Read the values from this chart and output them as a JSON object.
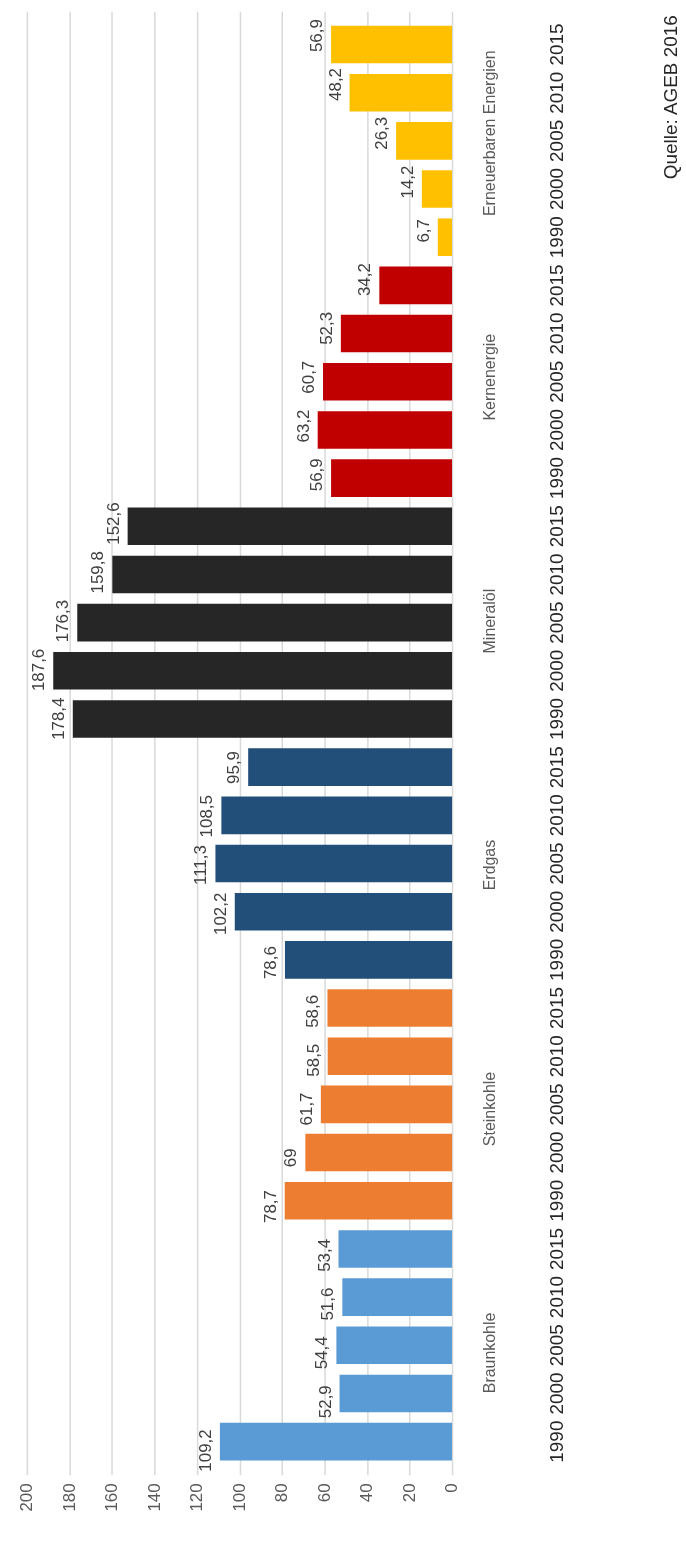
{
  "chart_data": {
    "type": "bar",
    "orientation": "horizontal",
    "categories": [
      "2015",
      "2010",
      "2005",
      "2000",
      "1990",
      "2015",
      "2010",
      "2005",
      "2000",
      "1990",
      "2015",
      "2010",
      "2005",
      "2000",
      "1990",
      "2015",
      "2010",
      "2005",
      "2000",
      "1990",
      "2015",
      "2010",
      "2005",
      "2000",
      "1990",
      "2015",
      "2010",
      "2005",
      "2000",
      "1990"
    ],
    "series": [
      {
        "name": "Erneuerbaren Energien",
        "color": "#ffc000",
        "values": [
          56.9,
          48.2,
          26.3,
          14.2,
          6.7,
          null,
          null,
          null,
          null,
          null,
          null,
          null,
          null,
          null,
          null,
          null,
          null,
          null,
          null,
          null,
          null,
          null,
          null,
          null,
          null,
          null,
          null,
          null,
          null,
          null
        ],
        "value_labels": [
          "56,9",
          "48,2",
          "26,3",
          "14,2",
          "6,7",
          null,
          null,
          null,
          null,
          null,
          null,
          null,
          null,
          null,
          null,
          null,
          null,
          null,
          null,
          null,
          null,
          null,
          null,
          null,
          null,
          null,
          null,
          null,
          null,
          null
        ]
      },
      {
        "name": "Kernenergie",
        "color": "#c00000",
        "values": [
          null,
          null,
          null,
          null,
          null,
          34.2,
          52.3,
          60.7,
          63.2,
          56.9,
          null,
          null,
          null,
          null,
          null,
          null,
          null,
          null,
          null,
          null,
          null,
          null,
          null,
          null,
          null,
          null,
          null,
          null,
          null,
          null
        ],
        "value_labels": [
          null,
          null,
          null,
          null,
          null,
          "34,2",
          "52,3",
          "60,7",
          "63,2",
          "56,9",
          null,
          null,
          null,
          null,
          null,
          null,
          null,
          null,
          null,
          null,
          null,
          null,
          null,
          null,
          null,
          null,
          null,
          null,
          null,
          null
        ]
      },
      {
        "name": "Mineralöl",
        "color": "#262626",
        "values": [
          null,
          null,
          null,
          null,
          null,
          null,
          null,
          null,
          null,
          null,
          152.6,
          159.8,
          176.3,
          187.6,
          178.4,
          null,
          null,
          null,
          null,
          null,
          null,
          null,
          null,
          null,
          null,
          null,
          null,
          null,
          null,
          null
        ],
        "value_labels": [
          null,
          null,
          null,
          null,
          null,
          null,
          null,
          null,
          null,
          null,
          "152,6",
          "159,8",
          "176,3",
          "187,6",
          "178,4",
          null,
          null,
          null,
          null,
          null,
          null,
          null,
          null,
          null,
          null,
          null,
          null,
          null,
          null,
          null
        ]
      },
      {
        "name": "Erdgas",
        "color": "#224e7a",
        "values": [
          null,
          null,
          null,
          null,
          null,
          null,
          null,
          null,
          null,
          null,
          null,
          null,
          null,
          null,
          null,
          95.9,
          108.5,
          111.3,
          102.2,
          78.6,
          null,
          null,
          null,
          null,
          null,
          null,
          null,
          null,
          null,
          null
        ],
        "value_labels": [
          null,
          null,
          null,
          null,
          null,
          null,
          null,
          null,
          null,
          null,
          null,
          null,
          null,
          null,
          null,
          "95,9",
          "108,5",
          "111,3",
          "102,2",
          "78,6",
          null,
          null,
          null,
          null,
          null,
          null,
          null,
          null,
          null,
          null
        ]
      },
      {
        "name": "Steinkohle",
        "color": "#ed7d31",
        "values": [
          null,
          null,
          null,
          null,
          null,
          null,
          null,
          null,
          null,
          null,
          null,
          null,
          null,
          null,
          null,
          null,
          null,
          null,
          null,
          null,
          58.6,
          58.5,
          61.7,
          69,
          78.7,
          null,
          null,
          null,
          null,
          null
        ],
        "value_labels": [
          null,
          null,
          null,
          null,
          null,
          null,
          null,
          null,
          null,
          null,
          null,
          null,
          null,
          null,
          null,
          null,
          null,
          null,
          null,
          null,
          "58,6",
          "58,5",
          "61,7",
          "69",
          "78,7",
          null,
          null,
          null,
          null,
          null
        ]
      },
      {
        "name": "Braunkohle",
        "color": "#5b9bd5",
        "values": [
          null,
          null,
          null,
          null,
          null,
          null,
          null,
          null,
          null,
          null,
          null,
          null,
          null,
          null,
          null,
          null,
          null,
          null,
          null,
          null,
          null,
          null,
          null,
          null,
          null,
          53.4,
          51.6,
          54.4,
          52.9,
          109.2
        ],
        "value_labels": [
          null,
          null,
          null,
          null,
          null,
          null,
          null,
          null,
          null,
          null,
          null,
          null,
          null,
          null,
          null,
          null,
          null,
          null,
          null,
          null,
          null,
          null,
          null,
          null,
          null,
          "53,4",
          "51,6",
          "54,4",
          "52,9",
          "109,2"
        ]
      }
    ],
    "xlim": [
      200,
      0
    ],
    "xticks": [
      0,
      20,
      40,
      60,
      80,
      100,
      120,
      140,
      160,
      180,
      200
    ],
    "grid": "x",
    "annotations": [
      "Quelle: AGEB 2016"
    ]
  }
}
